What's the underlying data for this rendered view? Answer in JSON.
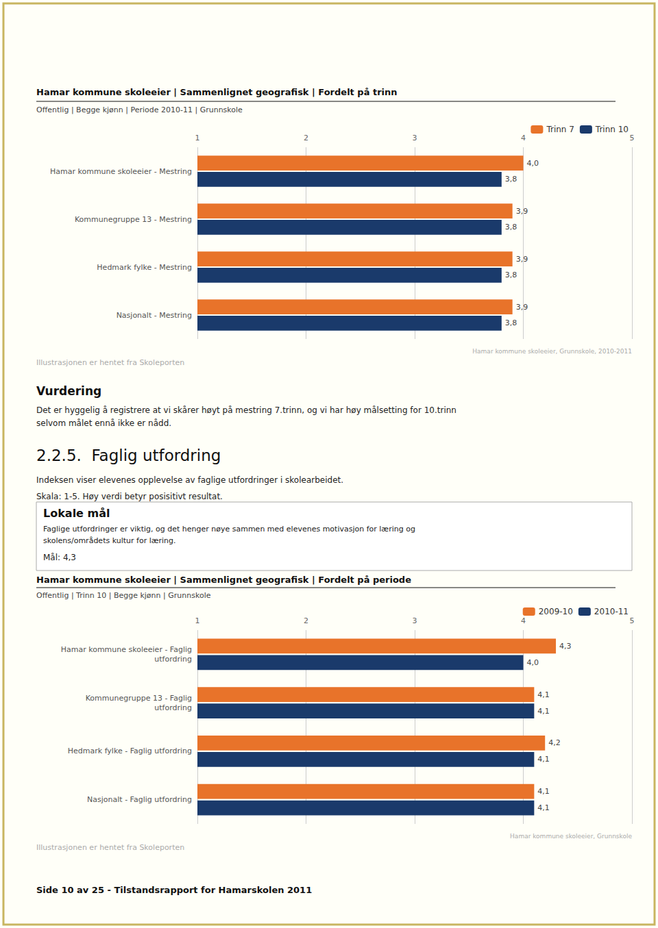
{
  "chart_data": [
    {
      "type": "bar",
      "orientation": "horizontal",
      "title": "Hamar kommune skoleeier | Sammenlignet geografisk | Fordelt på trinn",
      "subtitle": "Offentlig | Begge kjønn | Periode 2010-11 | Grunnskole",
      "categories": [
        "Hamar kommune skoleeier - Mestring",
        "Kommunegruppe 13 - Mestring",
        "Hedmark fylke - Mestring",
        "Nasjonalt - Mestring"
      ],
      "series": [
        {
          "name": "Trinn 7",
          "color": "#e8732a",
          "values": [
            4.0,
            3.9,
            3.9,
            3.9
          ],
          "value_labels": [
            "4,0",
            "3,9",
            "3,9",
            "3,9"
          ]
        },
        {
          "name": "Trinn 10",
          "color": "#1a3a6b",
          "values": [
            3.8,
            3.8,
            3.8,
            3.8
          ],
          "value_labels": [
            "3,8",
            "3,8",
            "3,8",
            "3,8"
          ]
        }
      ],
      "xlim": [
        1,
        5
      ],
      "xticks": [
        1,
        2,
        3,
        4,
        5
      ],
      "grid": true,
      "legend": "upper right",
      "data_labels": true,
      "annotations": [
        "Hamar kommune skoleeier, Grunnskole, 2010-2011",
        "Illustrasjonen er hentet fra Skoleporten",
        "Vurdering",
        "Det er hyggelig å registrere at vi skårer høyt på mestring 7.trinn, og vi har høy målsetting for 10.trinn\nselvom målet ennå ikke er nådd.",
        "2.2.5.  Faglig utfordring",
        "Indeksen viser elevenes opplevelse av faglige utfordringer i skolearbeidet.",
        "Skala: 1-5. Høy verdi betyr posisitivt resultat.",
        "Lokale mål",
        "Faglige utfordringer er viktig, og det henger nøye sammen med elevenes motivasjon for læring og\nskolens/områdets kultur for læring.",
        "Mål: 4,3"
      ]
    },
    {
      "type": "bar",
      "orientation": "horizontal",
      "title": "Hamar kommune skoleeier | Sammenlignet geografisk | Fordelt på periode",
      "subtitle": "Offentlig | Trinn 10 | Begge kjønn | Grunnskole",
      "categories": [
        "Hamar kommune skoleeier - Faglig\nutfordring",
        "Kommunegruppe 13 - Faglig\nutfordring",
        "Hedmark fylke - Faglig utfordring",
        "Nasjonalt - Faglig utfordring"
      ],
      "series": [
        {
          "name": "2009-10",
          "color": "#e8732a",
          "values": [
            4.3,
            4.1,
            4.2,
            4.1
          ],
          "value_labels": [
            "4,3",
            "4,1",
            "4,2",
            "4,1"
          ]
        },
        {
          "name": "2010-11",
          "color": "#1a3a6b",
          "values": [
            4.0,
            4.1,
            4.1,
            4.1
          ],
          "value_labels": [
            "4,0",
            "4,1",
            "4,1",
            "4,1"
          ]
        }
      ],
      "xlim": [
        1,
        5
      ],
      "xticks": [
        1,
        2,
        3,
        4,
        5
      ],
      "grid": true,
      "legend": "upper right",
      "data_labels": true,
      "annotations": [
        "Hamar kommune skoleeier, Grunnskole",
        "Illustrasjonen er hentet fra Skoleporten",
        "Side 10 av 25 - Tilstandsrapport for Hamarskolen 2011"
      ]
    }
  ]
}
